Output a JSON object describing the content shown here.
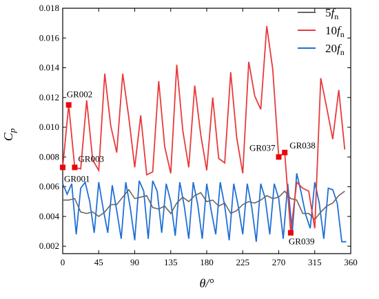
{
  "chart_data": {
    "type": "line",
    "xlabel": "θ/°",
    "ylabel": "Cp",
    "xlim": [
      0,
      360
    ],
    "ylim": [
      0.0015,
      0.018
    ],
    "xticks": [
      0,
      45,
      90,
      135,
      180,
      225,
      270,
      315,
      360
    ],
    "yticks": [
      0.002,
      0.004,
      0.006,
      0.008,
      0.01,
      0.012,
      0.014,
      0.016,
      0.018
    ],
    "ytick_labels": [
      "0.002",
      "0.004",
      "0.006",
      "0.008",
      "0.010",
      "0.012",
      "0.014",
      "0.016",
      "0.018"
    ],
    "grid": false,
    "legend_position": "top-right",
    "series": [
      {
        "name": "5fn",
        "name_main": "5",
        "name_italic": "f",
        "name_sub": "n",
        "color": "#666666",
        "x": [
          0,
          7.5,
          15,
          22.5,
          30,
          37.5,
          45,
          52.5,
          60,
          67.5,
          75,
          82.5,
          90,
          97.5,
          105,
          112.5,
          120,
          127.5,
          135,
          142.5,
          150,
          157.5,
          165,
          172.5,
          180,
          187.5,
          195,
          202.5,
          210,
          217.5,
          225,
          232.5,
          240,
          247.5,
          255,
          262.5,
          270,
          277.5,
          285,
          292.5,
          300,
          307.5,
          315,
          322.5,
          330,
          337.5,
          345,
          352.5
        ],
        "y": [
          0.0051,
          0.0051,
          0.0052,
          0.0043,
          0.0042,
          0.0043,
          0.004,
          0.0043,
          0.0048,
          0.0048,
          0.0053,
          0.0058,
          0.0052,
          0.0053,
          0.0054,
          0.0046,
          0.0045,
          0.0047,
          0.0042,
          0.0049,
          0.0053,
          0.005,
          0.0054,
          0.0056,
          0.005,
          0.0051,
          0.0047,
          0.0049,
          0.0042,
          0.0044,
          0.0048,
          0.005,
          0.0049,
          0.0051,
          0.0054,
          0.0052,
          0.0053,
          0.0057,
          0.0052,
          0.0051,
          0.0042,
          0.0042,
          0.0038,
          0.0043,
          0.0047,
          0.0049,
          0.0054,
          0.0057
        ]
      },
      {
        "name": "10fn",
        "name_main": "10",
        "name_italic": "f",
        "name_sub": "n",
        "color": "#e8393b",
        "x": [
          0,
          7.5,
          15,
          22.5,
          30,
          37.5,
          45,
          52.5,
          60,
          67.5,
          75,
          82.5,
          90,
          97.5,
          105,
          112.5,
          120,
          127.5,
          135,
          142.5,
          150,
          157.5,
          165,
          172.5,
          180,
          187.5,
          195,
          202.5,
          210,
          217.5,
          225,
          232.5,
          240,
          247.5,
          255,
          262.5,
          270,
          277.5,
          285,
          292.5,
          300,
          307.5,
          315,
          322.5,
          330,
          337.5,
          345,
          352.5
        ],
        "y": [
          0.0073,
          0.0115,
          0.0073,
          0.0072,
          0.0118,
          0.0078,
          0.0071,
          0.0136,
          0.0101,
          0.0083,
          0.0136,
          0.0107,
          0.0073,
          0.0108,
          0.0068,
          0.007,
          0.0131,
          0.0087,
          0.0069,
          0.0142,
          0.0098,
          0.0073,
          0.0128,
          0.0095,
          0.0071,
          0.012,
          0.0079,
          0.0076,
          0.0137,
          0.0093,
          0.0069,
          0.0144,
          0.0121,
          0.0112,
          0.0168,
          0.0139,
          0.008,
          0.0083,
          0.0029,
          0.0063,
          0.0059,
          0.0057,
          0.0032,
          0.0133,
          0.0113,
          0.0092,
          0.0125,
          0.0085
        ]
      },
      {
        "name": "20fn",
        "name_main": "20",
        "name_italic": "f",
        "name_sub": "n",
        "color": "#1f6fd6",
        "x": [
          0,
          5.6,
          11.3,
          16.9,
          22.5,
          28.1,
          33.8,
          39.4,
          45,
          50.6,
          56.3,
          61.9,
          67.5,
          73.1,
          78.8,
          84.4,
          90,
          95.6,
          101.3,
          106.9,
          112.5,
          118.1,
          123.8,
          129.4,
          135,
          140.6,
          146.3,
          151.9,
          157.5,
          163.1,
          168.8,
          174.4,
          180,
          185.6,
          191.3,
          196.9,
          202.5,
          208.1,
          213.8,
          219.4,
          225,
          230.6,
          236.3,
          241.9,
          247.5,
          253.1,
          258.8,
          264.4,
          270,
          275.6,
          281.3,
          286.9,
          292.5,
          298.1,
          303.8,
          309.4,
          315,
          320.6,
          326.3,
          331.9,
          337.5,
          343.1,
          348.8,
          354.4
        ],
        "y": [
          0.0062,
          0.0055,
          0.0062,
          0.0028,
          0.0059,
          0.0063,
          0.005,
          0.0029,
          0.0063,
          0.0045,
          0.0029,
          0.0061,
          0.0044,
          0.0025,
          0.0063,
          0.0046,
          0.0024,
          0.0064,
          0.0057,
          0.0025,
          0.0064,
          0.0057,
          0.0029,
          0.0062,
          0.005,
          0.0027,
          0.0063,
          0.0047,
          0.0025,
          0.0063,
          0.0048,
          0.0025,
          0.0062,
          0.0044,
          0.0028,
          0.0063,
          0.0047,
          0.0024,
          0.0062,
          0.0047,
          0.0028,
          0.0062,
          0.0046,
          0.0023,
          0.0062,
          0.0052,
          0.0028,
          0.0062,
          0.0052,
          0.0025,
          0.0062,
          0.0029,
          0.0069,
          0.0056,
          0.0041,
          0.0032,
          0.0063,
          0.0049,
          0.0025,
          0.0059,
          0.0058,
          0.0049,
          0.0023,
          0.0023
        ]
      }
    ],
    "markers": [
      {
        "label": "GR001",
        "x": 0,
        "y": 0.0073,
        "color": "#e8080b"
      },
      {
        "label": "GR002",
        "x": 7.5,
        "y": 0.0115,
        "color": "#e8080b"
      },
      {
        "label": "GR003",
        "x": 15,
        "y": 0.0073,
        "color": "#e8080b"
      },
      {
        "label": "GR037",
        "x": 270,
        "y": 0.008,
        "color": "#e8080b"
      },
      {
        "label": "GR038",
        "x": 277.5,
        "y": 0.0083,
        "color": "#e8080b"
      },
      {
        "label": "GR039",
        "x": 285,
        "y": 0.0029,
        "color": "#e8080b"
      }
    ]
  }
}
